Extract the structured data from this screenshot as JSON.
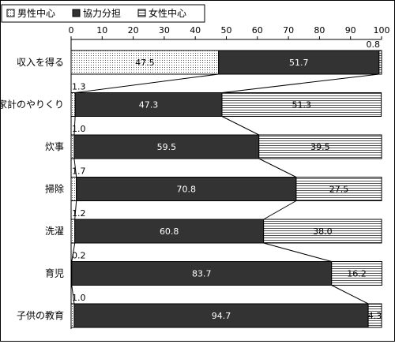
{
  "chart_data": {
    "type": "bar",
    "orientation": "horizontal",
    "stacked": true,
    "xlim": [
      0,
      100
    ],
    "xticks": [
      "0",
      "10",
      "20",
      "30",
      "40",
      "50",
      "60",
      "70",
      "80",
      "90",
      "100"
    ],
    "grid": false,
    "legend_position": "top-left",
    "categories": [
      "収入を得る",
      "家計のやりくり",
      "炊事",
      "掃除",
      "洗濯",
      "育児",
      "子供の教育"
    ],
    "series": [
      {
        "name": "男性中心",
        "pattern": "dots",
        "color": "#ffffff",
        "values": [
          47.5,
          1.3,
          1.0,
          1.7,
          1.2,
          0.2,
          1.0
        ],
        "labels": [
          "47.5",
          "1.3",
          "1.0",
          "1.7",
          "1.2",
          "0.2",
          "1.0"
        ]
      },
      {
        "name": "協力分担",
        "pattern": "solid",
        "color": "#333333",
        "values": [
          51.7,
          47.3,
          59.5,
          70.8,
          60.8,
          83.7,
          94.7
        ],
        "labels": [
          "51.7",
          "47.3",
          "59.5",
          "70.8",
          "60.8",
          "83.7",
          "94.7"
        ]
      },
      {
        "name": "女性中心",
        "pattern": "horizontal-lines",
        "color": "#ffffff",
        "values": [
          0.8,
          51.3,
          39.5,
          27.5,
          38.0,
          16.2,
          4.3
        ],
        "labels": [
          "0.8",
          "51.3",
          "39.5",
          "27.5",
          "38.0",
          "16.2",
          "4.3"
        ]
      }
    ]
  }
}
